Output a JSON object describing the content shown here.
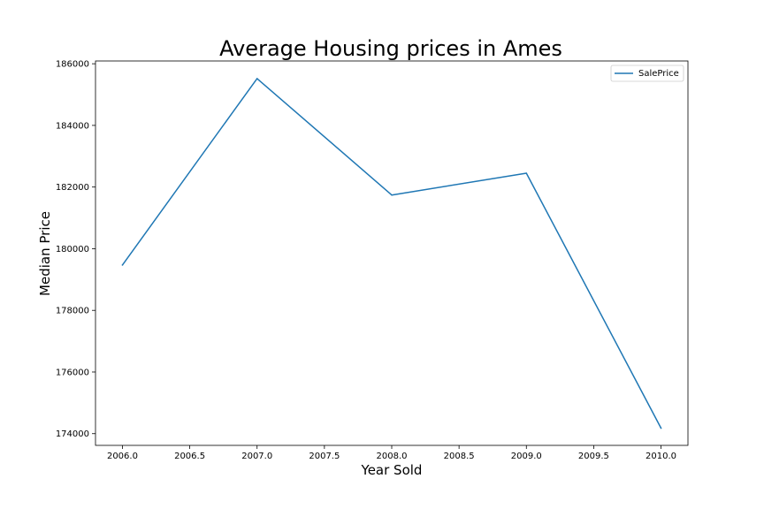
{
  "chart_data": {
    "type": "line",
    "title": "Average Housing prices in Ames",
    "xlabel": "Year Sold",
    "ylabel": "Median Price",
    "x": [
      2006,
      2007,
      2008,
      2009,
      2010
    ],
    "series": [
      {
        "name": "SalePrice",
        "values": [
          179470,
          185520,
          181740,
          182450,
          174180
        ],
        "color": "#1f77b4"
      }
    ],
    "xlim": [
      2005.8,
      2010.2
    ],
    "ylim": [
      173620,
      186090
    ],
    "x_ticks": [
      2006.0,
      2006.5,
      2007.0,
      2007.5,
      2008.0,
      2008.5,
      2009.0,
      2009.5,
      2010.0
    ],
    "x_tick_labels": [
      "2006.0",
      "2006.5",
      "2007.0",
      "2007.5",
      "2008.0",
      "2008.5",
      "2009.0",
      "2009.5",
      "2010.0"
    ],
    "y_ticks": [
      174000,
      176000,
      178000,
      180000,
      182000,
      184000,
      186000
    ],
    "y_tick_labels": [
      "174000",
      "176000",
      "178000",
      "180000",
      "182000",
      "184000",
      "186000"
    ],
    "grid": false,
    "legend_position": "top-right"
  }
}
